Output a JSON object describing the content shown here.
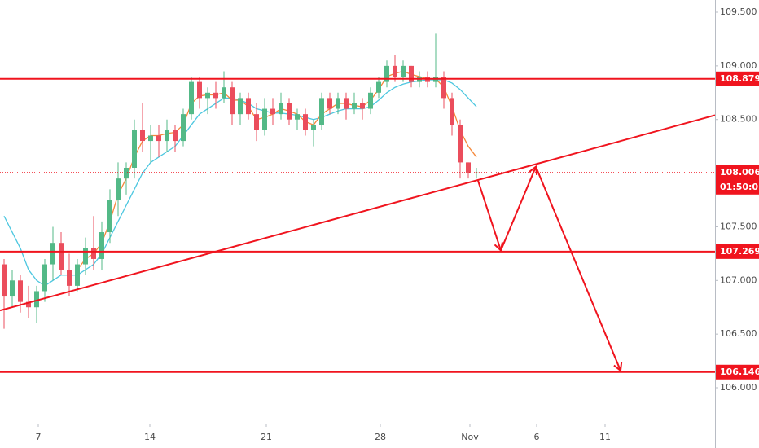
{
  "chart_data": {
    "type": "candlestick",
    "xlim": [
      -0.5,
      87.3
    ],
    "xticks": [
      {
        "value": 4.2,
        "label": "7"
      },
      {
        "value": 17.9,
        "label": "14"
      },
      {
        "value": 32.2,
        "label": "21"
      },
      {
        "value": 46.2,
        "label": "28"
      },
      {
        "value": 57.2,
        "label": "Nov"
      },
      {
        "value": 65.4,
        "label": "6"
      },
      {
        "value": 73.8,
        "label": "11"
      }
    ],
    "ylim": [
      105.666,
      109.614
    ],
    "yticks": [
      {
        "value": 109.5,
        "label": "109.500"
      },
      {
        "value": 109,
        "label": "109.000"
      },
      {
        "value": 108.5,
        "label": "108.500"
      },
      {
        "value": 107.5,
        "label": "107.500"
      },
      {
        "value": 107,
        "label": "107.000"
      },
      {
        "value": 106.5,
        "label": "106.500"
      },
      {
        "value": 106,
        "label": "106.000"
      }
    ],
    "up_color": "#53b987",
    "down_color": "#eb4d5c",
    "ohlc": [
      [
        107.15,
        107.2,
        106.55,
        106.85
      ],
      [
        106.85,
        107.1,
        106.75,
        107.0
      ],
      [
        107.0,
        107.05,
        106.7,
        106.8
      ],
      [
        106.8,
        106.95,
        106.65,
        106.75
      ],
      [
        106.75,
        106.95,
        106.6,
        106.9
      ],
      [
        106.9,
        107.2,
        106.8,
        107.15
      ],
      [
        107.15,
        107.5,
        107.0,
        107.35
      ],
      [
        107.35,
        107.45,
        107.05,
        107.1
      ],
      [
        107.1,
        107.25,
        106.85,
        106.95
      ],
      [
        106.95,
        107.2,
        106.9,
        107.15
      ],
      [
        107.15,
        107.4,
        107.05,
        107.3
      ],
      [
        107.3,
        107.6,
        107.1,
        107.2
      ],
      [
        107.2,
        107.55,
        107.1,
        107.45
      ],
      [
        107.45,
        107.85,
        107.35,
        107.75
      ],
      [
        107.75,
        108.1,
        107.6,
        107.95
      ],
      [
        107.95,
        108.1,
        107.8,
        108.05
      ],
      [
        108.05,
        108.5,
        107.95,
        108.4
      ],
      [
        108.4,
        108.65,
        108.2,
        108.3
      ],
      [
        108.3,
        108.45,
        108.1,
        108.35
      ],
      [
        108.35,
        108.45,
        108.15,
        108.3
      ],
      [
        108.3,
        108.5,
        108.2,
        108.4
      ],
      [
        108.4,
        108.45,
        108.2,
        108.3
      ],
      [
        108.3,
        108.6,
        108.25,
        108.55
      ],
      [
        108.55,
        108.9,
        108.5,
        108.85
      ],
      [
        108.85,
        108.9,
        108.6,
        108.7
      ],
      [
        108.7,
        108.8,
        108.55,
        108.75
      ],
      [
        108.75,
        108.85,
        108.6,
        108.7
      ],
      [
        108.7,
        108.95,
        108.65,
        108.8
      ],
      [
        108.8,
        108.85,
        108.45,
        108.55
      ],
      [
        108.55,
        108.75,
        108.45,
        108.7
      ],
      [
        108.7,
        108.75,
        108.5,
        108.55
      ],
      [
        108.55,
        108.65,
        108.3,
        108.4
      ],
      [
        108.4,
        108.7,
        108.35,
        108.6
      ],
      [
        108.6,
        108.7,
        108.45,
        108.55
      ],
      [
        108.55,
        108.75,
        108.5,
        108.65
      ],
      [
        108.65,
        108.7,
        108.45,
        108.5
      ],
      [
        108.5,
        108.6,
        108.4,
        108.55
      ],
      [
        108.55,
        108.6,
        108.35,
        108.4
      ],
      [
        108.4,
        108.5,
        108.25,
        108.45
      ],
      [
        108.45,
        108.75,
        108.4,
        108.7
      ],
      [
        108.7,
        108.75,
        108.55,
        108.6
      ],
      [
        108.6,
        108.75,
        108.55,
        108.7
      ],
      [
        108.7,
        108.75,
        108.5,
        108.6
      ],
      [
        108.6,
        108.75,
        108.55,
        108.65
      ],
      [
        108.65,
        108.7,
        108.5,
        108.6
      ],
      [
        108.6,
        108.8,
        108.55,
        108.75
      ],
      [
        108.75,
        108.9,
        108.7,
        108.85
      ],
      [
        108.85,
        109.05,
        108.8,
        109.0
      ],
      [
        109.0,
        109.1,
        108.85,
        108.9
      ],
      [
        108.9,
        109.05,
        108.85,
        109.0
      ],
      [
        109.0,
        109.0,
        108.8,
        108.85
      ],
      [
        108.85,
        108.95,
        108.8,
        108.9
      ],
      [
        108.9,
        108.95,
        108.8,
        108.85
      ],
      [
        108.85,
        109.3,
        108.8,
        108.9
      ],
      [
        108.9,
        108.95,
        108.6,
        108.7
      ],
      [
        108.7,
        108.75,
        108.35,
        108.45
      ],
      [
        108.45,
        108.5,
        107.95,
        108.1
      ],
      [
        108.1,
        108.1,
        107.95,
        108.0
      ],
      [
        108.0,
        108.05,
        107.95,
        108.006
      ]
    ],
    "series": [
      {
        "color": "#4dc7e0",
        "values": [
          107.6,
          107.45,
          107.3,
          107.1,
          107.0,
          106.95,
          107.0,
          107.05,
          107.05,
          107.05,
          107.1,
          107.15,
          107.25,
          107.4,
          107.55,
          107.7,
          107.85,
          108.0,
          108.1,
          108.15,
          108.2,
          108.25,
          108.35,
          108.45,
          108.55,
          108.6,
          108.65,
          108.7,
          108.7,
          108.68,
          108.65,
          108.6,
          108.58,
          108.56,
          108.56,
          108.55,
          108.54,
          108.52,
          108.5,
          108.52,
          108.55,
          108.58,
          108.6,
          108.6,
          108.6,
          108.62,
          108.68,
          108.75,
          108.8,
          108.83,
          108.85,
          108.86,
          108.87,
          108.87,
          108.87,
          108.84,
          108.78,
          108.7,
          108.62
        ]
      },
      {
        "color": "#f5883a",
        "values": [
          null,
          null,
          null,
          null,
          null,
          null,
          null,
          null,
          null,
          107.1,
          107.2,
          107.25,
          107.35,
          107.55,
          107.8,
          107.95,
          108.15,
          108.3,
          108.35,
          108.35,
          108.37,
          108.38,
          108.45,
          108.65,
          108.72,
          108.73,
          108.73,
          108.75,
          108.68,
          108.68,
          108.62,
          108.5,
          108.52,
          108.55,
          108.6,
          108.58,
          108.55,
          108.48,
          108.45,
          108.55,
          108.6,
          108.65,
          108.65,
          108.63,
          108.62,
          108.68,
          108.78,
          108.9,
          108.93,
          108.95,
          108.92,
          108.9,
          108.88,
          108.88,
          108.8,
          108.62,
          108.4,
          108.25,
          108.15
        ]
      }
    ],
    "levels": [
      108.879,
      107.269,
      106.146
    ],
    "current_price": 108.006,
    "countdown": "01:50:05",
    "trendline": {
      "x": [
        -0.5,
        87.3
      ],
      "y": [
        106.72,
        108.54
      ]
    },
    "projection": {
      "x": [
        58.2,
        61.0,
        65.3,
        75.7
      ],
      "y": [
        107.93,
        107.28,
        108.06,
        106.16
      ]
    },
    "line_color": "#f0141e"
  }
}
